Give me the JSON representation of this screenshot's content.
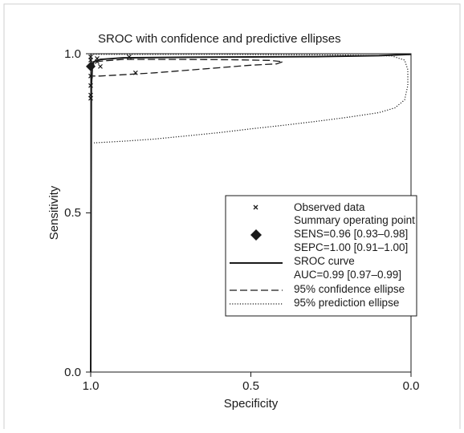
{
  "chart_data": {
    "type": "scatter",
    "title": "SROC with confidence and predictive ellipses",
    "xlabel": "Specificity",
    "ylabel": "Sensitivity",
    "x_axis_reversed": true,
    "xlim": [
      1.0,
      0.0
    ],
    "ylim": [
      0.0,
      1.0
    ],
    "x_ticks": [
      "1.0",
      "0.5",
      "0.0"
    ],
    "y_ticks": [
      "0.0",
      "0.5",
      "1.0"
    ],
    "grid": false,
    "legend_position": "right, below middle",
    "series": [
      {
        "name": "Observed data",
        "style": "x-markers",
        "points": [
          {
            "x": 1.0,
            "y": 0.99
          },
          {
            "x": 1.0,
            "y": 0.98
          },
          {
            "x": 0.995,
            "y": 0.97
          },
          {
            "x": 1.0,
            "y": 0.96
          },
          {
            "x": 1.0,
            "y": 0.93
          },
          {
            "x": 1.0,
            "y": 0.9
          },
          {
            "x": 1.0,
            "y": 0.87
          },
          {
            "x": 1.0,
            "y": 0.86
          },
          {
            "x": 0.98,
            "y": 0.985
          },
          {
            "x": 0.98,
            "y": 0.975
          },
          {
            "x": 0.97,
            "y": 0.96
          },
          {
            "x": 0.88,
            "y": 0.99
          },
          {
            "x": 0.86,
            "y": 0.94
          }
        ]
      },
      {
        "name": "Summary operating point",
        "style": "diamond",
        "points": [
          {
            "x": 1.0,
            "y": 0.96
          }
        ]
      },
      {
        "name": "SROC curve",
        "style": "solid",
        "points": [
          {
            "x": 1.0,
            "y": 0.0
          },
          {
            "x": 0.999,
            "y": 0.5
          },
          {
            "x": 0.998,
            "y": 0.9
          },
          {
            "x": 0.995,
            "y": 0.96
          },
          {
            "x": 0.99,
            "y": 0.975
          },
          {
            "x": 0.97,
            "y": 0.982
          },
          {
            "x": 0.9,
            "y": 0.987
          },
          {
            "x": 0.7,
            "y": 0.989
          },
          {
            "x": 0.5,
            "y": 0.99
          },
          {
            "x": 0.3,
            "y": 0.991
          },
          {
            "x": 0.1,
            "y": 0.994
          },
          {
            "x": 0.0,
            "y": 0.998
          }
        ]
      },
      {
        "name": "95% confidence ellipse",
        "style": "dashed",
        "points": [
          {
            "x": 1.0,
            "y": 0.95
          },
          {
            "x": 0.99,
            "y": 0.975
          },
          {
            "x": 0.9,
            "y": 0.982
          },
          {
            "x": 0.7,
            "y": 0.982
          },
          {
            "x": 0.55,
            "y": 0.981
          },
          {
            "x": 0.44,
            "y": 0.979
          },
          {
            "x": 0.4,
            "y": 0.975
          },
          {
            "x": 0.42,
            "y": 0.968
          },
          {
            "x": 0.5,
            "y": 0.964
          },
          {
            "x": 0.6,
            "y": 0.956
          },
          {
            "x": 0.7,
            "y": 0.948
          },
          {
            "x": 0.8,
            "y": 0.94
          },
          {
            "x": 0.9,
            "y": 0.934
          },
          {
            "x": 0.97,
            "y": 0.93
          },
          {
            "x": 1.0,
            "y": 0.93
          }
        ]
      },
      {
        "name": "95% prediction ellipse",
        "style": "dotted",
        "points": [
          {
            "x": 1.0,
            "y": 0.998
          },
          {
            "x": 0.8,
            "y": 0.998
          },
          {
            "x": 0.6,
            "y": 0.998
          },
          {
            "x": 0.4,
            "y": 0.997
          },
          {
            "x": 0.2,
            "y": 0.996
          },
          {
            "x": 0.06,
            "y": 0.993
          },
          {
            "x": 0.02,
            "y": 0.98
          },
          {
            "x": 0.01,
            "y": 0.95
          },
          {
            "x": 0.01,
            "y": 0.9
          },
          {
            "x": 0.02,
            "y": 0.855
          },
          {
            "x": 0.05,
            "y": 0.83
          },
          {
            "x": 0.1,
            "y": 0.815
          },
          {
            "x": 0.2,
            "y": 0.8
          },
          {
            "x": 0.3,
            "y": 0.787
          },
          {
            "x": 0.4,
            "y": 0.775
          },
          {
            "x": 0.5,
            "y": 0.764
          },
          {
            "x": 0.6,
            "y": 0.752
          },
          {
            "x": 0.7,
            "y": 0.742
          },
          {
            "x": 0.8,
            "y": 0.732
          },
          {
            "x": 0.9,
            "y": 0.725
          },
          {
            "x": 0.99,
            "y": 0.72
          }
        ]
      }
    ],
    "legend": {
      "observed": "Observed data",
      "summary": "Summary operating point",
      "sens": "SENS=0.96 [0.93–0.98]",
      "spec": "SEPC=1.00 [0.91–1.00]",
      "sroc": "SROC curve",
      "auc": "AUC=0.99 [0.97–0.99]",
      "conf": "95% confidence ellipse",
      "pred": "95% prediction ellipse"
    }
  }
}
